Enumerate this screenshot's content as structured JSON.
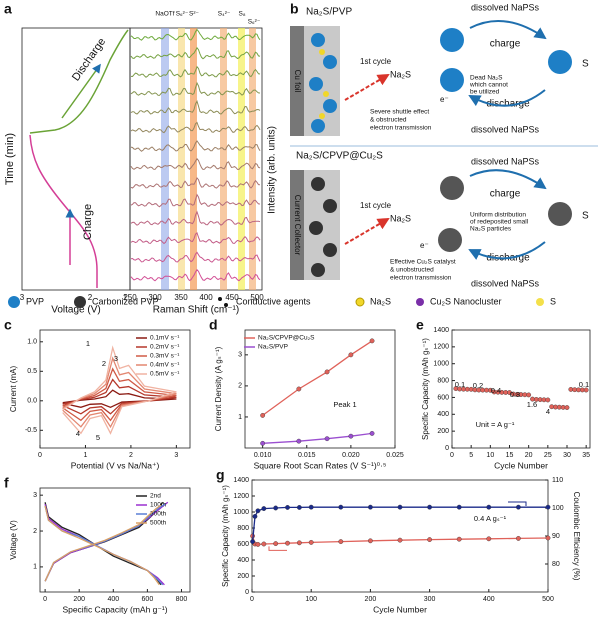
{
  "panel_a": {
    "label": "a",
    "ylabel": "Time (min)",
    "xlabel": "Voltage (V)",
    "voltage_ticks": [
      "3",
      "2",
      "1"
    ],
    "discharge": "Discharge",
    "charge": "Charge",
    "raman_xlabel": "Raman Shift (cm⁻¹)",
    "raman_ticks": [
      "250",
      "300",
      "350",
      "400",
      "450",
      "500"
    ],
    "bands": [
      "NaOTf",
      "S₆²⁻",
      "S²⁻",
      "S₄²⁻",
      "S₈",
      "S₆²⁻"
    ],
    "intensity_label": "Intensity (arb. units)"
  },
  "panel_b": {
    "label": "b",
    "top": {
      "title": "Na₂S/PVP",
      "electrode": "Cu foil",
      "cycle": "1st cycle",
      "na2s": "Na₂S",
      "note": [
        "Severe shuttle effect",
        "& obstructed",
        "electron transmission"
      ],
      "electron": "e⁻",
      "dead": [
        "Dead Na₂S",
        "which cannot",
        "be utilized"
      ],
      "dissolved_top": "dissolved NaPSs",
      "dissolved_bottom": "dissolved NaPSs",
      "charge": "charge",
      "discharge": "discharge",
      "s": "S",
      "na2s_left": "Na₂S"
    },
    "bottom": {
      "title": "Na₂S/CPVP@Cu₂S",
      "electrode": "Current Collector",
      "cycle": "1st cycle",
      "na2s": "Na₂S",
      "uniform": [
        "Uniform distribution",
        "of redeposited small",
        "Na₂S particles"
      ],
      "electron": "e⁻",
      "note": [
        "Effective Cu₂S catalyst",
        "& unobstructed",
        "electron transmission"
      ],
      "dissolved_top": "dissolved NaPSs",
      "dissolved_bottom": "dissolved NaPSs",
      "charge": "charge",
      "discharge": "discharge",
      "s": "S",
      "na2s_left": "Na₂S"
    }
  },
  "legend": [
    "PVP",
    "Carbonized PVP",
    "Conductive agents",
    "Na₂S",
    "Cu₂S Nanocluster",
    "S"
  ],
  "chart_data": [
    {
      "type": "line",
      "label": "c",
      "xlabel": "Potential (V vs Na/Na⁺)",
      "ylabel": "Current (mA)",
      "xlim": [
        0,
        3.3
      ],
      "xticks": [
        0,
        1,
        2,
        3
      ],
      "ylim": [
        -0.8,
        1.2
      ],
      "yticks": [
        -0.5,
        {
          "value": 0,
          "label": "0.0"
        },
        0.5,
        {
          "value": 1,
          "label": "1.0"
        }
      ],
      "annotations": [
        "1",
        "2",
        "3",
        "4",
        "5"
      ],
      "x": [
        0.5,
        0.9,
        1.2,
        1.45,
        1.6,
        1.75,
        1.95,
        2.3,
        3.0,
        2.4,
        1.8,
        1.55,
        1.35,
        1.1,
        0.9,
        0.5
      ],
      "series": [
        {
          "name": "0.1mV s⁻¹",
          "color": "#8b1a12",
          "values": [
            -0.03,
            0.01,
            0.03,
            0.07,
            0.18,
            0.11,
            0.12,
            0.05,
            0.03,
            0.0,
            -0.02,
            -0.11,
            -0.05,
            -0.06,
            -0.11,
            -0.04
          ]
        },
        {
          "name": "0.2mV s⁻¹",
          "color": "#b5372a",
          "values": [
            -0.06,
            0.02,
            0.06,
            0.14,
            0.36,
            0.22,
            0.24,
            0.1,
            0.06,
            0.0,
            -0.04,
            -0.22,
            -0.1,
            -0.12,
            -0.22,
            -0.08
          ]
        },
        {
          "name": "0.3mV s⁻¹",
          "color": "#d05a45",
          "values": [
            -0.09,
            0.03,
            0.09,
            0.21,
            0.54,
            0.33,
            0.36,
            0.15,
            0.09,
            0.0,
            -0.06,
            -0.33,
            -0.15,
            -0.18,
            -0.33,
            -0.12
          ]
        },
        {
          "name": "0.4mV s⁻¹",
          "color": "#e38771",
          "values": [
            -0.12,
            0.04,
            0.12,
            0.28,
            0.72,
            0.44,
            0.48,
            0.2,
            0.12,
            0.0,
            -0.08,
            -0.44,
            -0.2,
            -0.24,
            -0.44,
            -0.16
          ]
        },
        {
          "name": "0.5mV s⁻¹",
          "color": "#f0b3a2",
          "values": [
            -0.15,
            0.05,
            0.15,
            0.35,
            0.9,
            0.55,
            0.6,
            0.25,
            0.15,
            0.0,
            -0.1,
            -0.55,
            -0.25,
            -0.3,
            -0.55,
            -0.2
          ]
        }
      ]
    },
    {
      "type": "line",
      "markers": true,
      "label": "d",
      "xlabel": "Square Root Scan Rates (V S⁻¹)⁰·⁵",
      "ylabel": "Current Density (A gₛ⁻¹)",
      "xlim": [
        0.008,
        0.025
      ],
      "xticks": [
        {
          "value": 0.01,
          "label": "0.010"
        },
        {
          "value": 0.015,
          "label": "0.015"
        },
        {
          "value": 0.02,
          "label": "0.020"
        },
        {
          "value": 0.025,
          "label": "0.025"
        }
      ],
      "ylim": [
        0,
        3.8
      ],
      "yticks": [
        1,
        2,
        3
      ],
      "annotations": [
        "Peak 1"
      ],
      "x": [
        0.01,
        0.0141,
        0.0173,
        0.02,
        0.0224
      ],
      "series": [
        {
          "name": "Na₂S/CPVP@Cu₂S",
          "color": "#e0625a",
          "values": [
            1.05,
            1.9,
            2.45,
            3.0,
            3.45
          ]
        },
        {
          "name": "Na₂S/PVP",
          "color": "#9b4fd0",
          "values": [
            0.15,
            0.22,
            0.3,
            0.38,
            0.47
          ]
        }
      ]
    },
    {
      "type": "scatter",
      "label": "e",
      "xlabel": "Cycle Number",
      "ylabel": "Specific Capacity (mAh gₛ⁻¹)",
      "xlim": [
        0,
        36
      ],
      "xticks": [
        0,
        5,
        10,
        15,
        20,
        25,
        30,
        35
      ],
      "ylim": [
        0,
        1400
      ],
      "yticks": [
        0,
        200,
        400,
        600,
        800,
        1000,
        1200,
        1400
      ],
      "annotations": [
        "0.1",
        "0.2",
        "0.4",
        "0.8",
        "1.6",
        "4",
        "0.1",
        "Unit = A g⁻¹"
      ],
      "x": [
        1,
        2,
        3,
        4,
        5,
        6,
        7,
        8,
        9,
        10,
        11,
        12,
        13,
        14,
        15,
        16,
        17,
        18,
        19,
        20,
        21,
        22,
        23,
        24,
        25,
        26,
        27,
        28,
        29,
        30,
        31,
        32,
        33,
        34,
        35
      ],
      "series": [
        {
          "color": "#e0625a",
          "values": [
            705,
            700,
            698,
            697,
            696,
            690,
            688,
            687,
            686,
            685,
            665,
            662,
            660,
            659,
            658,
            640,
            636,
            634,
            632,
            630,
            580,
            576,
            574,
            572,
            570,
            490,
            486,
            484,
            482,
            480,
            695,
            692,
            690,
            689,
            688
          ]
        }
      ]
    },
    {
      "type": "line",
      "label": "f",
      "xlabel": "Specific Capacity (mAh g⁻¹)",
      "ylabel": "Voltage (V)",
      "xlim": [
        -30,
        850
      ],
      "xticks": [
        0,
        200,
        400,
        600,
        800
      ],
      "ylim": [
        0.3,
        3.2
      ],
      "yticks": [
        1,
        2,
        3
      ],
      "series": [
        {
          "name": "2nd",
          "color": "#222222",
          "x": [
            0,
            20,
            100,
            200,
            300,
            400,
            500,
            600,
            650,
            680,
            null,
            0,
            50,
            150,
            250,
            350,
            450,
            550,
            620,
            660,
            690
          ],
          "values": [
            2.8,
            2.4,
            2.1,
            1.9,
            1.6,
            1.3,
            1.1,
            0.9,
            0.7,
            0.5,
            null,
            0.6,
            1.1,
            1.4,
            1.55,
            1.7,
            1.9,
            2.1,
            2.4,
            2.6,
            2.8
          ]
        },
        {
          "name": "100th",
          "color": "#9b30d0",
          "x": [
            0,
            20,
            100,
            200,
            300,
            400,
            500,
            600,
            660,
            700,
            null,
            0,
            50,
            150,
            250,
            350,
            450,
            550,
            630,
            680,
            720
          ],
          "values": [
            2.75,
            2.35,
            2.05,
            1.85,
            1.6,
            1.35,
            1.15,
            0.9,
            0.7,
            0.5,
            null,
            0.6,
            1.1,
            1.4,
            1.55,
            1.72,
            1.92,
            2.15,
            2.45,
            2.65,
            2.8
          ]
        },
        {
          "name": "300th",
          "color": "#5b7fd6",
          "x": [
            0,
            20,
            100,
            200,
            300,
            400,
            500,
            600,
            650,
            690,
            null,
            0,
            50,
            150,
            250,
            350,
            450,
            550,
            620,
            670,
            705
          ],
          "values": [
            2.7,
            2.3,
            2.0,
            1.85,
            1.6,
            1.35,
            1.15,
            0.9,
            0.7,
            0.5,
            null,
            0.6,
            1.12,
            1.42,
            1.56,
            1.72,
            1.92,
            2.15,
            2.45,
            2.65,
            2.75
          ]
        },
        {
          "name": "500th",
          "color": "#d9a066",
          "x": [
            0,
            20,
            100,
            200,
            300,
            400,
            500,
            600,
            640,
            670,
            null,
            0,
            50,
            150,
            250,
            350,
            450,
            550,
            610,
            650,
            680
          ],
          "values": [
            2.7,
            2.3,
            2.0,
            1.8,
            1.58,
            1.35,
            1.15,
            0.9,
            0.7,
            0.5,
            null,
            0.6,
            1.12,
            1.42,
            1.58,
            1.74,
            1.95,
            2.18,
            2.45,
            2.62,
            2.72
          ]
        }
      ]
    },
    {
      "type": "line",
      "markers": true,
      "label": "g",
      "xlabel": "Cycle Number",
      "ylabel": "Specific Capacity (mAh gₛ⁻¹)",
      "y2label": "Coulombic Efficiency (%)",
      "xlim": [
        0,
        500
      ],
      "xticks": [
        0,
        100,
        200,
        300,
        400,
        500
      ],
      "ylim": [
        0,
        1400
      ],
      "yticks": [
        0,
        200,
        400,
        600,
        800,
        1000,
        1200,
        1400
      ],
      "y2lim": [
        70,
        110
      ],
      "y2ticks": [
        80,
        90,
        100,
        110
      ],
      "annotations": [
        "0.4 A gₛ⁻¹"
      ],
      "x": [
        1,
        5,
        10,
        20,
        40,
        60,
        80,
        100,
        150,
        200,
        250,
        300,
        350,
        400,
        450,
        500
      ],
      "series": [
        {
          "color": "#e0625a",
          "values": [
            700,
            600,
            595,
            600,
            605,
            610,
            615,
            620,
            630,
            640,
            648,
            655,
            660,
            665,
            670,
            675
          ]
        },
        {
          "color": "#1a2a8a",
          "axis": "y2",
          "values": [
            88,
            97,
            99,
            99.8,
            100,
            100.2,
            100.2,
            100.3,
            100.3,
            100.3,
            100.3,
            100.3,
            100.3,
            100.3,
            100.3,
            100.3
          ]
        }
      ]
    }
  ]
}
